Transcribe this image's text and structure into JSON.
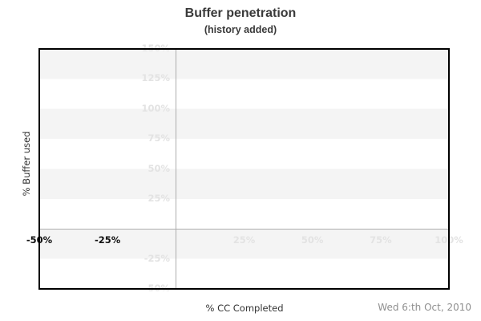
{
  "header": {
    "title": "Buffer penetration",
    "subtitle": "(history added)"
  },
  "chart_data": {
    "type": "line",
    "title": "Buffer penetration",
    "subtitle": "(history added)",
    "xlabel": "% CC Completed",
    "ylabel": "% Buffer used",
    "xlim": [
      -50,
      100
    ],
    "ylim": [
      -50,
      150
    ],
    "x_ticks": [
      {
        "value": -50,
        "label": "-50%",
        "style": "dark"
      },
      {
        "value": -25,
        "label": "-25%",
        "style": "dark"
      },
      {
        "value": 25,
        "label": "25%",
        "style": "faint"
      },
      {
        "value": 50,
        "label": "50%",
        "style": "faint"
      },
      {
        "value": 75,
        "label": "75%",
        "style": "faint"
      },
      {
        "value": 100,
        "label": "100%",
        "style": "faint"
      }
    ],
    "y_ticks": [
      {
        "value": 150,
        "label": "150%"
      },
      {
        "value": 125,
        "label": "125%"
      },
      {
        "value": 100,
        "label": "100%"
      },
      {
        "value": 75,
        "label": "75%"
      },
      {
        "value": 50,
        "label": "50%"
      },
      {
        "value": 25,
        "label": "25%"
      },
      {
        "value": -25,
        "label": "-25%"
      },
      {
        "value": -50,
        "label": "-50%"
      }
    ],
    "series": [],
    "zero_gridlines": {
      "x_zero": true,
      "y_zero": true
    },
    "grid": "alternating-horizontal-bands",
    "band_interval_pct": 25,
    "legend": "none"
  },
  "footer": {
    "date": "Wed 6:th Oct, 2010"
  },
  "colors": {
    "band": "#f4f4f4",
    "background": "#ffffff",
    "border": "#000000",
    "gridline": "#adadad",
    "faint_tick": "#e3e3e3",
    "dark_tick": "#111111",
    "title": "#3a3a3a",
    "axis_label": "#333333",
    "date": "#8f8f8f"
  }
}
